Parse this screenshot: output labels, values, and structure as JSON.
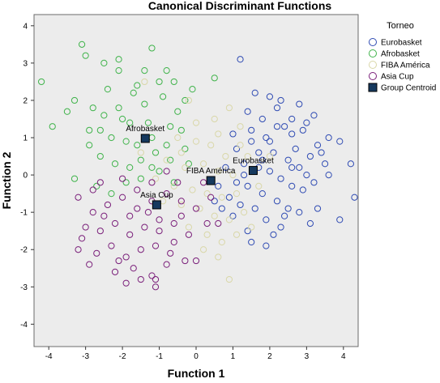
{
  "chart_data": {
    "type": "scatter",
    "title": "Canonical Discriminant Functions",
    "xlabel": "Function 1",
    "ylabel": "Function 2",
    "xlim": [
      -4.4,
      4.4
    ],
    "ylim": [
      -4.6,
      4.3
    ],
    "xticks": [
      -4,
      -3,
      -2,
      -1,
      0,
      1,
      2,
      3,
      4
    ],
    "yticks": [
      4,
      3,
      2,
      1,
      0,
      -1,
      -2,
      -3,
      -4
    ],
    "grid": false,
    "legend": {
      "title": "Torneo",
      "placement": "right",
      "entries": [
        {
          "label": "Eurobasket",
          "color": "#2f4bb3",
          "marker": "circle"
        },
        {
          "label": "Afrobasket",
          "color": "#3fb34a",
          "marker": "circle"
        },
        {
          "label": "FIBA América",
          "color": "#d9d7a8",
          "marker": "circle"
        },
        {
          "label": "Asia Cup",
          "color": "#7a1f7a",
          "marker": "circle"
        },
        {
          "label": "Group Centroid",
          "color": "#16395e",
          "marker": "square"
        }
      ]
    },
    "background": "#ececec",
    "series": [
      {
        "name": "Eurobasket",
        "color": "#2f4bb3",
        "points": [
          [
            1.2,
            3.1
          ],
          [
            2.8,
            1.9
          ],
          [
            3.0,
            1.4
          ],
          [
            2.2,
            1.8
          ],
          [
            2.4,
            1.3
          ],
          [
            1.8,
            1.5
          ],
          [
            1.5,
            1.2
          ],
          [
            1.9,
            1.0
          ],
          [
            2.6,
            1.1
          ],
          [
            3.3,
            0.8
          ],
          [
            2.1,
            0.6
          ],
          [
            2.5,
            0.4
          ],
          [
            2.8,
            0.2
          ],
          [
            3.1,
            0.5
          ],
          [
            3.5,
            0.3
          ],
          [
            3.9,
            0.9
          ],
          [
            4.2,
            0.3
          ],
          [
            1.1,
            0.7
          ],
          [
            1.3,
            0.3
          ],
          [
            1.7,
            0.2
          ],
          [
            2.0,
            0.1
          ],
          [
            2.3,
            -0.1
          ],
          [
            2.6,
            -0.3
          ],
          [
            2.9,
            -0.4
          ],
          [
            3.2,
            -0.2
          ],
          [
            3.6,
            0.0
          ],
          [
            1.4,
            -0.3
          ],
          [
            1.8,
            -0.5
          ],
          [
            2.2,
            -0.7
          ],
          [
            2.5,
            -0.9
          ],
          [
            2.8,
            -1.0
          ],
          [
            3.1,
            -1.3
          ],
          [
            0.9,
            -0.6
          ],
          [
            1.2,
            -0.8
          ],
          [
            1.6,
            -0.9
          ],
          [
            1.9,
            -1.2
          ],
          [
            2.3,
            -1.4
          ],
          [
            1.4,
            -1.5
          ],
          [
            1.9,
            -1.9
          ],
          [
            0.6,
            -0.3
          ],
          [
            0.8,
            0.2
          ],
          [
            1.0,
            1.1
          ],
          [
            1.4,
            1.7
          ],
          [
            2.0,
            2.1
          ],
          [
            2.3,
            2.0
          ],
          [
            1.6,
            2.2
          ],
          [
            2.6,
            1.5
          ],
          [
            3.2,
            1.6
          ],
          [
            3.6,
            1.0
          ],
          [
            3.9,
            -1.2
          ],
          [
            4.3,
            -0.6
          ],
          [
            1.0,
            -1.1
          ],
          [
            0.7,
            -0.9
          ],
          [
            1.3,
            0.0
          ],
          [
            1.7,
            0.6
          ],
          [
            2.0,
            0.9
          ],
          [
            2.7,
            0.7
          ],
          [
            3.0,
            0.0
          ],
          [
            3.3,
            -0.9
          ],
          [
            2.4,
            -1.1
          ],
          [
            2.1,
            -1.6
          ],
          [
            1.5,
            -1.8
          ],
          [
            0.5,
            -0.7
          ],
          [
            1.1,
            -0.2
          ],
          [
            2.9,
            1.2
          ],
          [
            3.4,
            0.6
          ],
          [
            2.2,
            1.3
          ],
          [
            1.8,
            0.4
          ],
          [
            1.5,
            0.9
          ],
          [
            2.6,
            0.2
          ]
        ]
      },
      {
        "name": "Afrobasket",
        "color": "#3fb34a",
        "points": [
          [
            -3.1,
            3.5
          ],
          [
            -3.0,
            3.2
          ],
          [
            -4.2,
            2.5
          ],
          [
            -2.5,
            3.0
          ],
          [
            -2.1,
            3.1
          ],
          [
            -2.1,
            2.8
          ],
          [
            -1.6,
            2.4
          ],
          [
            -1.2,
            3.4
          ],
          [
            -0.8,
            2.8
          ],
          [
            -0.6,
            2.5
          ],
          [
            -0.1,
            2.3
          ],
          [
            0.5,
            2.6
          ],
          [
            -3.3,
            2.0
          ],
          [
            -2.8,
            1.8
          ],
          [
            -2.5,
            1.6
          ],
          [
            -2.1,
            1.8
          ],
          [
            -1.8,
            1.4
          ],
          [
            -1.4,
            1.9
          ],
          [
            -0.9,
            2.1
          ],
          [
            -0.5,
            1.7
          ],
          [
            -3.9,
            1.3
          ],
          [
            -2.9,
            1.2
          ],
          [
            -2.3,
            1.0
          ],
          [
            -1.9,
            0.9
          ],
          [
            -1.6,
            0.8
          ],
          [
            -1.2,
            1.0
          ],
          [
            -0.8,
            0.8
          ],
          [
            -0.4,
            1.2
          ],
          [
            -2.6,
            0.5
          ],
          [
            -2.2,
            0.3
          ],
          [
            -1.8,
            0.2
          ],
          [
            -1.5,
            0.4
          ],
          [
            -1.1,
            0.6
          ],
          [
            -0.7,
            0.4
          ],
          [
            -0.3,
            0.7
          ],
          [
            -3.3,
            -0.1
          ],
          [
            -2.7,
            -0.3
          ],
          [
            -2.3,
            -0.5
          ],
          [
            -1.9,
            -0.2
          ],
          [
            -1.5,
            -0.1
          ],
          [
            -1.0,
            0.1
          ],
          [
            -0.6,
            -0.2
          ],
          [
            -2.0,
            1.5
          ],
          [
            -1.3,
            1.4
          ],
          [
            -0.7,
            1.3
          ],
          [
            -0.3,
            2.0
          ],
          [
            -1.7,
            2.2
          ],
          [
            -2.4,
            2.3
          ],
          [
            -3.5,
            1.7
          ],
          [
            -2.9,
            0.8
          ],
          [
            -1.4,
            2.8
          ],
          [
            -1.0,
            2.5
          ],
          [
            -2.6,
            1.2
          ],
          [
            -1.2,
            0.2
          ],
          [
            -0.2,
            0.3
          ]
        ]
      },
      {
        "name": "FIBA América",
        "color": "#d9d7a8",
        "points": [
          [
            -1.4,
            2.5
          ],
          [
            -0.2,
            2.0
          ],
          [
            0.5,
            1.5
          ],
          [
            0.9,
            1.8
          ],
          [
            1.2,
            1.3
          ],
          [
            -0.5,
            1.0
          ],
          [
            0.0,
            0.9
          ],
          [
            0.4,
            0.8
          ],
          [
            0.8,
            0.5
          ],
          [
            1.2,
            0.8
          ],
          [
            -0.8,
            0.4
          ],
          [
            -0.3,
            0.2
          ],
          [
            0.2,
            0.3
          ],
          [
            0.6,
            0.1
          ],
          [
            1.0,
            0.0
          ],
          [
            1.4,
            0.5
          ],
          [
            -1.1,
            -0.1
          ],
          [
            -0.6,
            -0.3
          ],
          [
            -0.1,
            -0.4
          ],
          [
            0.3,
            -0.5
          ],
          [
            0.7,
            -0.6
          ],
          [
            1.1,
            -0.5
          ],
          [
            -0.9,
            -0.7
          ],
          [
            -0.4,
            -0.8
          ],
          [
            0.1,
            -0.9
          ],
          [
            0.5,
            -1.1
          ],
          [
            0.9,
            -1.2
          ],
          [
            1.3,
            -1.0
          ],
          [
            -0.2,
            -1.4
          ],
          [
            0.3,
            -1.6
          ],
          [
            0.7,
            -1.8
          ],
          [
            1.1,
            -1.6
          ],
          [
            0.6,
            -2.2
          ],
          [
            0.9,
            -2.8
          ],
          [
            1.7,
            -0.3
          ],
          [
            2.0,
            0.5
          ],
          [
            -1.5,
            0.6
          ],
          [
            0.0,
            1.4
          ],
          [
            0.6,
            1.1
          ],
          [
            -0.4,
            0.6
          ],
          [
            1.5,
            -1.4
          ],
          [
            0.2,
            -2.0
          ]
        ]
      },
      {
        "name": "Asia Cup",
        "color": "#7a1f7a",
        "points": [
          [
            -3.2,
            -0.6
          ],
          [
            -2.8,
            -1.0
          ],
          [
            -2.4,
            -0.8
          ],
          [
            -2.0,
            -0.6
          ],
          [
            -1.6,
            -0.9
          ],
          [
            -1.2,
            -0.7
          ],
          [
            -0.8,
            -0.5
          ],
          [
            -0.4,
            -0.7
          ],
          [
            0.0,
            -0.9
          ],
          [
            0.4,
            -0.6
          ],
          [
            -3.0,
            -1.4
          ],
          [
            -2.6,
            -1.5
          ],
          [
            -2.2,
            -1.3
          ],
          [
            -1.8,
            -1.6
          ],
          [
            -1.4,
            -1.4
          ],
          [
            -1.0,
            -1.2
          ],
          [
            -0.6,
            -1.3
          ],
          [
            -0.2,
            -1.6
          ],
          [
            0.3,
            -1.3
          ],
          [
            -3.2,
            -2.0
          ],
          [
            -2.7,
            -2.1
          ],
          [
            -2.3,
            -1.9
          ],
          [
            -1.9,
            -2.2
          ],
          [
            -1.5,
            -2.0
          ],
          [
            -1.1,
            -1.9
          ],
          [
            -0.7,
            -2.1
          ],
          [
            -0.3,
            -2.3
          ],
          [
            -2.9,
            -2.4
          ],
          [
            -2.2,
            -2.6
          ],
          [
            -1.7,
            -2.5
          ],
          [
            -1.2,
            -2.7
          ],
          [
            -0.8,
            -2.4
          ],
          [
            -1.9,
            -2.9
          ],
          [
            -1.1,
            -2.8
          ],
          [
            -2.0,
            -0.1
          ],
          [
            -1.6,
            -0.4
          ],
          [
            -1.2,
            -0.2
          ],
          [
            -0.8,
            0.1
          ],
          [
            -0.5,
            -0.2
          ],
          [
            -2.6,
            -0.2
          ],
          [
            -1.1,
            -3.0
          ],
          [
            0.0,
            -2.3
          ],
          [
            0.6,
            -1.3
          ],
          [
            -2.5,
            -1.1
          ],
          [
            -1.3,
            -1.0
          ],
          [
            -0.4,
            -1.1
          ],
          [
            -3.1,
            -1.7
          ],
          [
            -1.0,
            -1.5
          ],
          [
            -2.1,
            -2.3
          ],
          [
            -1.5,
            -2.8
          ],
          [
            -0.6,
            -1.8
          ],
          [
            0.2,
            -0.2
          ],
          [
            -2.8,
            -0.4
          ],
          [
            -1.8,
            -1.1
          ]
        ]
      },
      {
        "name": "Group Centroid",
        "color": "#16395e",
        "marker": "square",
        "points": [
          [
            1.55,
            0.12
          ],
          [
            -1.38,
            0.98
          ],
          [
            0.4,
            -0.15
          ],
          [
            -1.07,
            -0.8
          ]
        ]
      }
    ],
    "annotations": [
      {
        "text": "Afrobasket",
        "x": -1.38,
        "y": 0.98
      },
      {
        "text": "Eurobasket",
        "x": 1.55,
        "y": 0.12
      },
      {
        "text": "FIBA América",
        "x": 0.4,
        "y": -0.15
      },
      {
        "text": "Asia Cup",
        "x": -1.07,
        "y": -0.8
      }
    ]
  }
}
